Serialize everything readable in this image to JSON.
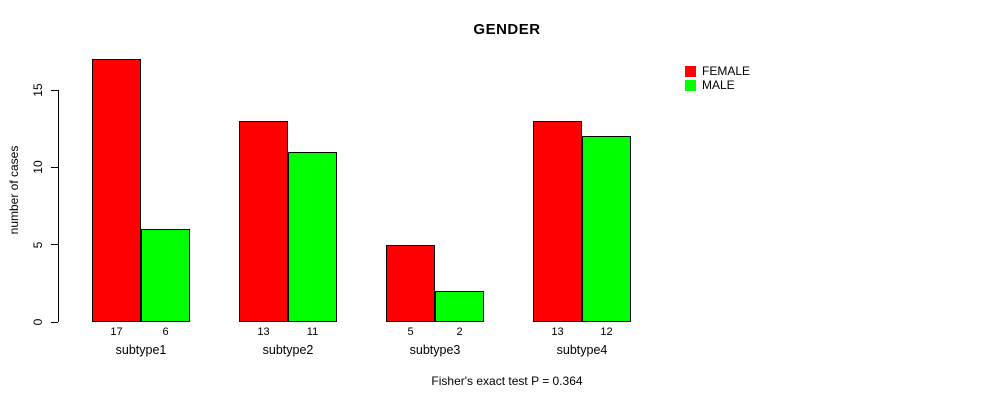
{
  "title": "GENDER",
  "footer": "Fisher's exact test P = 0.364",
  "legend": {
    "items": [
      {
        "label": "FEMALE",
        "color": "#FF0000"
      },
      {
        "label": "MALE",
        "color": "#00FF00"
      }
    ]
  },
  "chart_data": {
    "type": "bar",
    "title": "GENDER",
    "categories": [
      "subtype1",
      "subtype2",
      "subtype3",
      "subtype4"
    ],
    "series": [
      {
        "name": "FEMALE",
        "color": "#FF0000",
        "values": [
          17,
          13,
          5,
          13
        ]
      },
      {
        "name": "MALE",
        "color": "#00FF00",
        "values": [
          6,
          11,
          2,
          12
        ]
      }
    ],
    "bar_value_labels": [
      [
        17,
        6
      ],
      [
        13,
        11
      ],
      [
        5,
        2
      ],
      [
        13,
        12
      ]
    ],
    "xlabel": "",
    "ylabel": "number of cases",
    "yticks": [
      0,
      5,
      10,
      15
    ],
    "ylim": [
      0,
      17
    ],
    "grid": false,
    "legend_position": "top-right",
    "annotation": "Fisher's exact test P = 0.364"
  }
}
